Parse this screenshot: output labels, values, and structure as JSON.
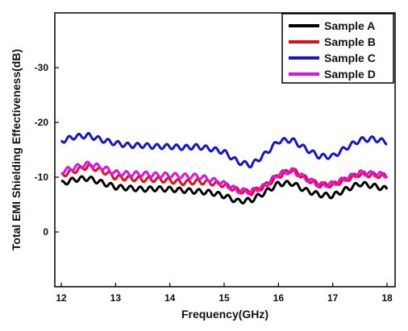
{
  "chart_data": {
    "type": "line",
    "title": "",
    "xlabel": "Frequency(GHz)",
    "ylabel": "Total EMI Shielding Effectiveness(dB)",
    "xlim": [
      12,
      18
    ],
    "ylim": [
      10,
      -40
    ],
    "x_ticks": [
      12,
      13,
      14,
      15,
      16,
      17,
      18
    ],
    "x_tick_labels": [
      "12",
      "13",
      "14",
      "15",
      "16",
      "17",
      "18"
    ],
    "y_ticks": [
      0,
      -10,
      -20,
      -30
    ],
    "y_tick_labels": [
      "0",
      "-10",
      "-20",
      "-30"
    ],
    "grid": false,
    "legend_position": "top-right",
    "x": [
      12.0,
      12.25,
      12.5,
      12.75,
      13.0,
      13.25,
      13.5,
      13.75,
      14.0,
      14.25,
      14.5,
      14.75,
      15.0,
      15.25,
      15.5,
      15.75,
      16.0,
      16.25,
      16.5,
      16.75,
      17.0,
      17.25,
      17.5,
      17.75,
      18.0
    ],
    "series": [
      {
        "name": "Sample A",
        "color": "#000000",
        "values": [
          -8.8,
          -9.6,
          -9.8,
          -9.0,
          -8.2,
          -8.0,
          -7.8,
          -7.9,
          -7.8,
          -7.6,
          -7.4,
          -7.2,
          -6.6,
          -5.6,
          -5.8,
          -7.2,
          -8.8,
          -8.9,
          -7.6,
          -6.8,
          -6.6,
          -7.8,
          -8.8,
          -8.4,
          -7.8
        ]
      },
      {
        "name": "Sample B",
        "color": "#e01010",
        "values": [
          -10.4,
          -11.2,
          -12.0,
          -11.2,
          -10.0,
          -9.8,
          -9.6,
          -9.6,
          -9.4,
          -9.0,
          -9.2,
          -9.0,
          -8.6,
          -7.6,
          -7.2,
          -8.4,
          -10.2,
          -11.4,
          -9.8,
          -8.6,
          -8.6,
          -9.6,
          -10.6,
          -10.4,
          -10.2
        ]
      },
      {
        "name": "Sample C",
        "color": "#1616c8",
        "values": [
          -16.6,
          -17.4,
          -17.6,
          -16.8,
          -16.2,
          -15.8,
          -15.8,
          -15.6,
          -15.6,
          -15.4,
          -15.6,
          -15.2,
          -14.6,
          -12.8,
          -12.2,
          -14.2,
          -16.6,
          -16.8,
          -15.2,
          -13.8,
          -13.8,
          -15.4,
          -16.8,
          -17.0,
          -16.4
        ]
      },
      {
        "name": "Sample D",
        "color": "#e010e0",
        "values": [
          -11.0,
          -11.8,
          -12.4,
          -11.8,
          -10.8,
          -10.6,
          -10.6,
          -10.4,
          -10.4,
          -10.2,
          -10.2,
          -9.6,
          -8.8,
          -7.6,
          -7.4,
          -8.4,
          -10.6,
          -11.2,
          -9.8,
          -8.6,
          -8.8,
          -9.8,
          -10.8,
          -10.6,
          -10.4
        ]
      }
    ]
  }
}
